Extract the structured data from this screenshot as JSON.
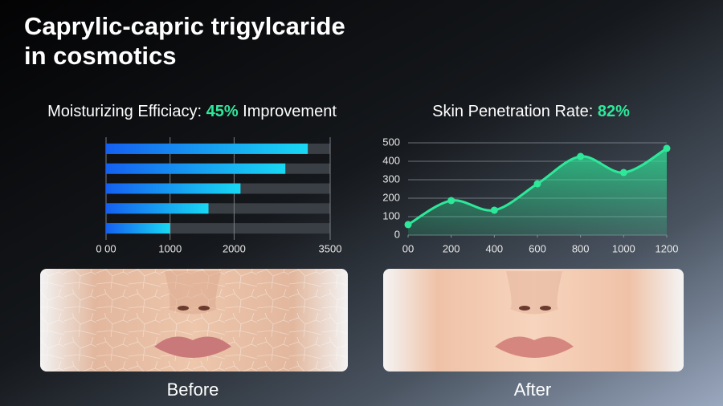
{
  "title": [
    "Caprylic-capric trigylcaride",
    "in cosmotics"
  ],
  "chart_data": [
    {
      "type": "hbar",
      "title": {
        "prefix": "Moisturizing Efficiacy:",
        "highlight": "45%",
        "suffix": "Improvement"
      },
      "categories": [
        null,
        null,
        null,
        null,
        null
      ],
      "values": [
        3150,
        2800,
        2100,
        1600,
        1000
      ],
      "gradient": [
        "#1560f0",
        "#19d8f2"
      ],
      "track_color": "#3a3f46",
      "xlim": [
        0,
        3500
      ],
      "xticks": [
        {
          "value": 0,
          "label": "0 00"
        },
        1000,
        2000,
        3500
      ],
      "grid": true
    },
    {
      "type": "line",
      "title": {
        "prefix": "Skin Penetration Rate:",
        "highlight": "82%"
      },
      "x": [
        0,
        200,
        400,
        600,
        800,
        1000,
        1200
      ],
      "values": [
        57,
        187,
        135,
        278,
        426,
        339,
        470
      ],
      "color": "#2ee89a",
      "xlim": [
        0,
        1200
      ],
      "ylim": [
        0,
        500
      ],
      "xticks": [
        {
          "value": 0,
          "label": "00"
        },
        200,
        400,
        600,
        800,
        1000,
        1200
      ],
      "yticks": [
        0,
        100,
        200,
        300,
        400,
        500
      ],
      "grid": true
    }
  ],
  "photos": [
    {
      "caption": "Before"
    },
    {
      "caption": "After"
    }
  ]
}
